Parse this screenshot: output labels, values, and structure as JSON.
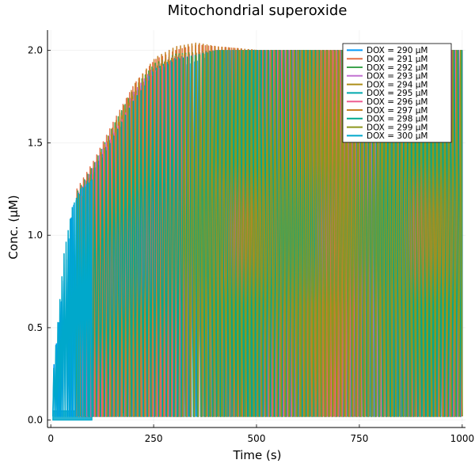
{
  "chart_data": {
    "type": "line",
    "title": "Mitochondrial superoxide",
    "xlabel": "Time (s)",
    "ylabel": "Conc. (μM)",
    "xlim": [
      -8,
      1008
    ],
    "ylim": [
      -0.04,
      2.11
    ],
    "xticks": [
      0,
      250,
      500,
      750,
      1000
    ],
    "yticks": [
      0.0,
      0.5,
      1.0,
      1.5,
      2.0
    ],
    "xtick_labels": [
      "0",
      "250",
      "500",
      "750",
      "1000"
    ],
    "ytick_labels": [
      "0.0",
      "0.5",
      "1.0",
      "1.5",
      "2.0"
    ],
    "grid": true,
    "legend_position": "top-right",
    "series": [
      {
        "name": "DOX = 290 μM",
        "color": "#009AFA",
        "t_start": 5,
        "period": 6.0,
        "envelope": {
          "x": [
            5,
            50,
            100,
            200,
            300,
            400,
            500,
            600,
            800,
            1000
          ],
          "y": [
            0.3,
            1.15,
            1.35,
            1.7,
            1.9,
            1.98,
            2.0,
            2.0,
            2.0,
            2.0
          ]
        }
      },
      {
        "name": "DOX = 291 μM",
        "color": "#E36F47",
        "t_start": 60,
        "period": 8.0,
        "envelope": {
          "x": [
            60,
            100,
            150,
            200,
            250,
            300,
            350,
            400,
            500,
            1000
          ],
          "y": [
            1.25,
            1.4,
            1.62,
            1.82,
            1.95,
            2.0,
            2.03,
            2.02,
            2.0,
            2.0
          ]
        }
      },
      {
        "name": "DOX = 292 μM",
        "color": "#3EA44E",
        "t_start": 62,
        "period": 8.2,
        "envelope": {
          "x": [
            62,
            100,
            150,
            200,
            250,
            300,
            400,
            500,
            1000
          ],
          "y": [
            1.24,
            1.38,
            1.6,
            1.8,
            1.93,
            1.98,
            2.0,
            2.0,
            2.0
          ]
        }
      },
      {
        "name": "DOX = 293 μM",
        "color": "#C271D2",
        "t_start": 64,
        "period": 8.4,
        "envelope": {
          "x": [
            64,
            100,
            150,
            200,
            250,
            300,
            400,
            1000
          ],
          "y": [
            1.23,
            1.37,
            1.58,
            1.78,
            1.92,
            1.97,
            2.0,
            2.0
          ]
        }
      },
      {
        "name": "DOX = 294 μM",
        "color": "#AC8E18",
        "t_start": 66,
        "period": 8.6,
        "envelope": {
          "x": [
            66,
            100,
            150,
            200,
            250,
            300,
            400,
            1000
          ],
          "y": [
            1.22,
            1.36,
            1.57,
            1.77,
            1.91,
            1.97,
            2.0,
            2.0
          ]
        }
      },
      {
        "name": "DOX = 295 μM",
        "color": "#00A9AD",
        "t_start": 68,
        "period": 8.8,
        "envelope": {
          "x": [
            68,
            100,
            150,
            200,
            250,
            300,
            400,
            1000
          ],
          "y": [
            1.22,
            1.35,
            1.56,
            1.76,
            1.9,
            1.96,
            2.0,
            2.0
          ]
        }
      },
      {
        "name": "DOX = 296 μM",
        "color": "#ED5D92",
        "t_start": 70,
        "period": 9.0,
        "envelope": {
          "x": [
            70,
            100,
            150,
            200,
            250,
            300,
            400,
            1000
          ],
          "y": [
            1.21,
            1.34,
            1.55,
            1.75,
            1.89,
            1.96,
            2.0,
            2.0
          ]
        }
      },
      {
        "name": "DOX = 297 μM",
        "color": "#C68225",
        "t_start": 72,
        "period": 9.2,
        "envelope": {
          "x": [
            72,
            100,
            150,
            200,
            250,
            300,
            350,
            400,
            500,
            1000
          ],
          "y": [
            1.21,
            1.36,
            1.6,
            1.82,
            1.96,
            2.02,
            2.04,
            2.02,
            2.0,
            2.0
          ]
        }
      },
      {
        "name": "DOX = 298 μM",
        "color": "#00A98D",
        "t_start": 74,
        "period": 9.4,
        "envelope": {
          "x": [
            74,
            100,
            150,
            200,
            250,
            300,
            400,
            1000
          ],
          "y": [
            1.2,
            1.33,
            1.54,
            1.74,
            1.88,
            1.95,
            2.0,
            2.0
          ]
        }
      },
      {
        "name": "DOX = 299 μM",
        "color": "#8E971E",
        "t_start": 320,
        "period": 9.6,
        "envelope": {
          "x": [
            320,
            400,
            500,
            1000
          ],
          "y": [
            1.95,
            2.0,
            2.0,
            2.0
          ]
        }
      },
      {
        "name": "DOX = 300 μM",
        "color": "#00A8CB",
        "t_start": 5,
        "period": 5.0,
        "envelope": {
          "x": [
            5,
            30,
            50,
            70,
            100
          ],
          "y": [
            0.28,
            0.9,
            1.15,
            1.25,
            1.3
          ]
        }
      }
    ],
    "baseline_bands": [
      {
        "color": "#8E971E",
        "x": [
          60,
          100,
          150,
          200,
          250,
          300,
          320
        ],
        "lower": [
          0.02,
          0.03,
          0.04,
          0.04,
          0.03,
          0.02,
          0.02
        ],
        "upper": [
          0.08,
          0.11,
          0.13,
          0.12,
          0.09,
          0.05,
          0.03
        ]
      },
      {
        "color": "#00A8CB",
        "x": [
          5,
          100
        ],
        "lower": [
          0.0,
          0.0
        ],
        "upper": [
          0.05,
          0.05
        ]
      }
    ]
  }
}
